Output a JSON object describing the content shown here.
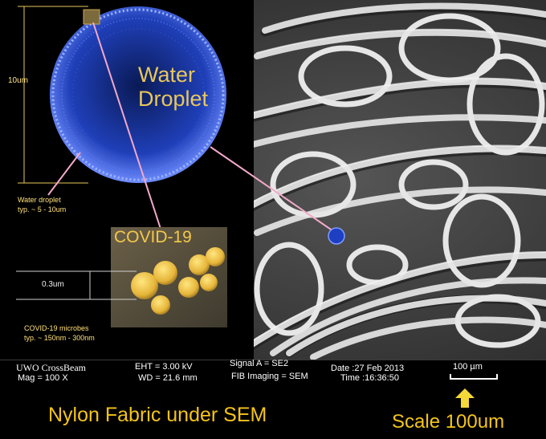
{
  "labels": {
    "water_line1": "Water",
    "water_line2": "Droplet",
    "ten_um": "10um",
    "droplet_info_1": "Water droplet",
    "droplet_info_2": "typ. ~ 5 - 10um",
    "covid": "COVID-19",
    "point3um": "0.3um",
    "microbe_info_1": "COVID-19 microbes",
    "microbe_info_2": "typ. ~ 150nm - 300nm"
  },
  "info_bar": {
    "instrument": "UWO CrossBeam",
    "mag": "Mag =   100 X",
    "eht": "EHT =  3.00 kV",
    "wd": "WD = 21.6 mm",
    "signal": "Signal A = SE2",
    "fib": "FIB Imaging = SEM",
    "date": "Date :27 Feb 2013",
    "time": "Time :16:36:50",
    "scale_bar": "100 µm"
  },
  "captions": {
    "title": "Nylon Fabric under SEM",
    "scale": "Scale 100um"
  },
  "colors": {
    "caption": "#f4c41a",
    "droplet": "#2a4fd6",
    "fiber": "#d9d9d9"
  }
}
